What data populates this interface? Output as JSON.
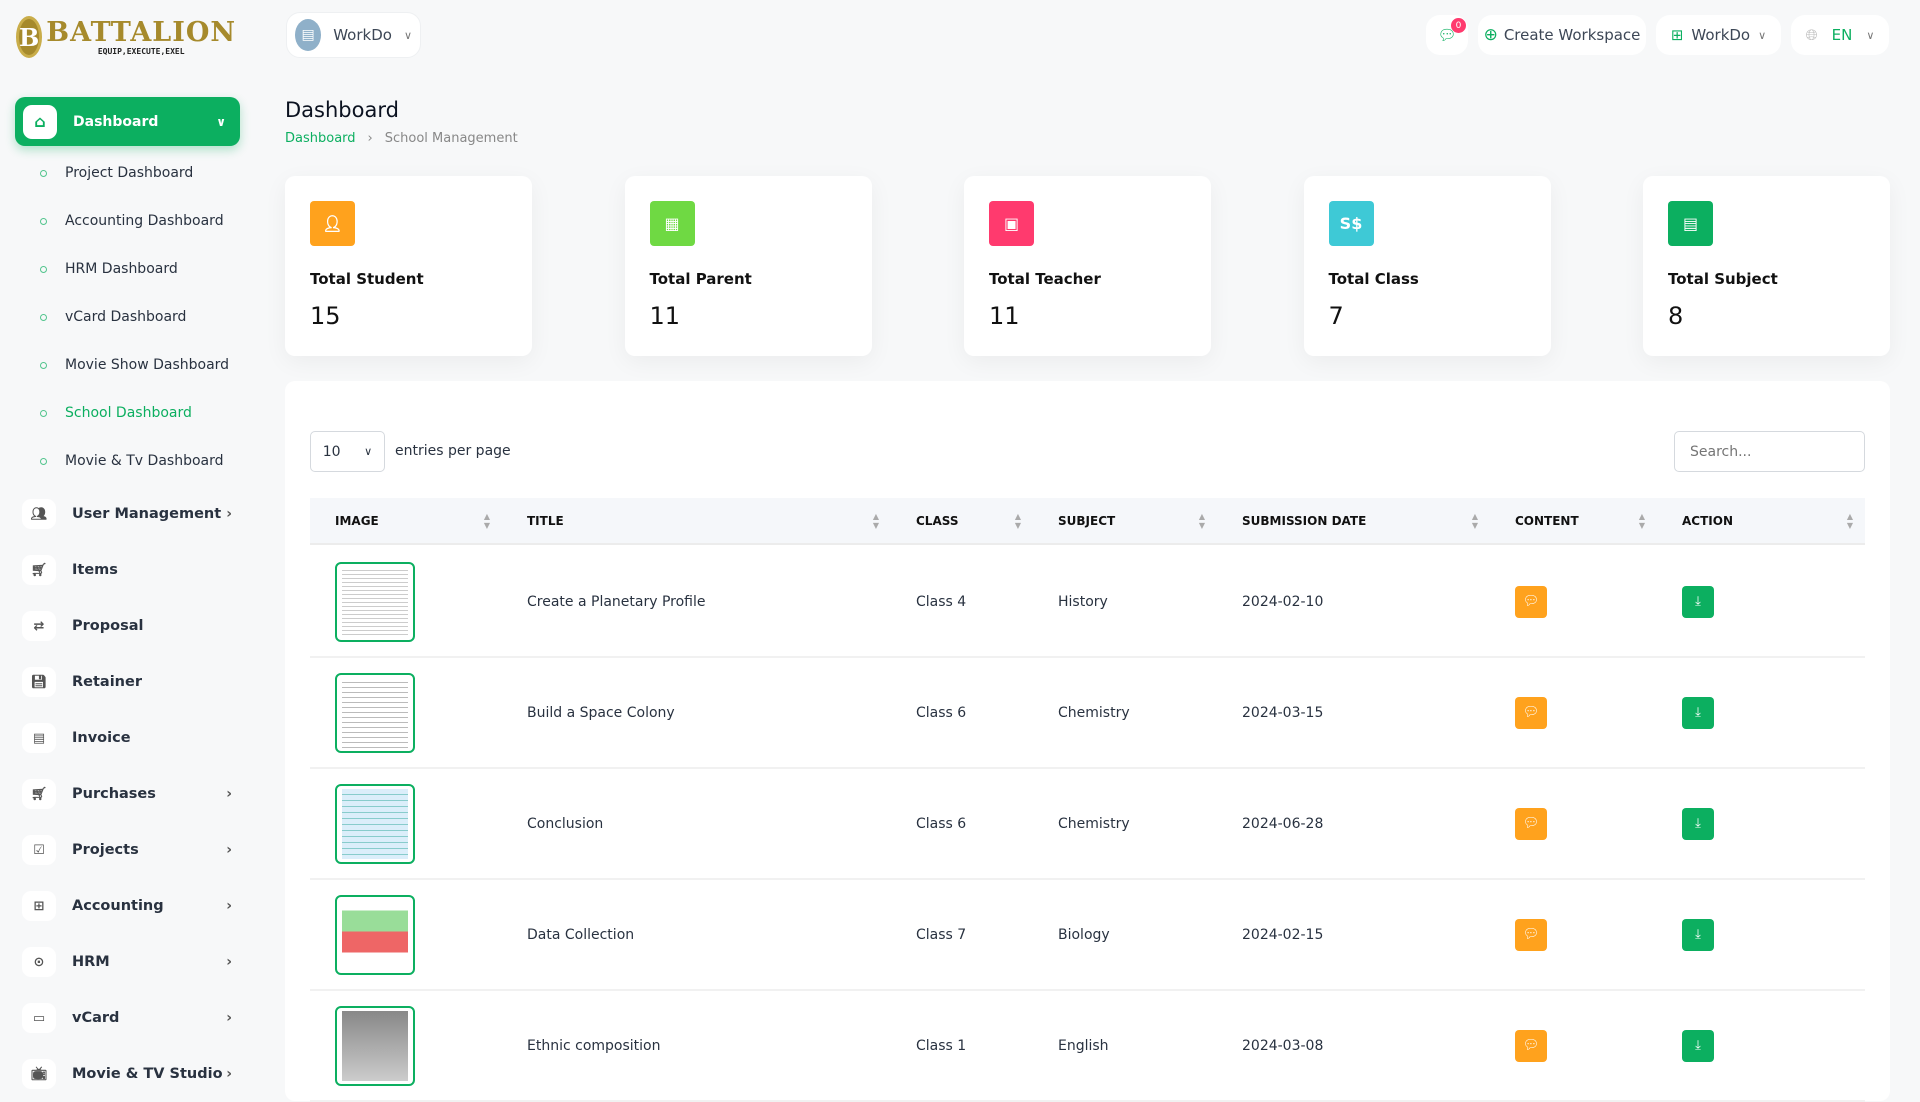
{
  "brand": {
    "name": "BATTALION",
    "tagline": "EQUIP,EXECUTE,EXEL"
  },
  "header": {
    "workspace": "WorkDo",
    "notif_count": "0",
    "create_workspace": "Create Workspace",
    "workspace_menu": "WorkDo",
    "language": "EN"
  },
  "sidebar": {
    "active": "Dashboard",
    "subitems": [
      "Project Dashboard",
      "Accounting Dashboard",
      "HRM Dashboard",
      "vCard Dashboard",
      "Movie Show Dashboard",
      "School Dashboard",
      "Movie & Tv Dashboard"
    ],
    "items": [
      {
        "label": "User Management",
        "icon": "users-icon",
        "arrow": true
      },
      {
        "label": "Items",
        "icon": "cart-icon",
        "arrow": false
      },
      {
        "label": "Proposal",
        "icon": "exchange-icon",
        "arrow": false
      },
      {
        "label": "Retainer",
        "icon": "save-icon",
        "arrow": false
      },
      {
        "label": "Invoice",
        "icon": "file-icon",
        "arrow": false
      },
      {
        "label": "Purchases",
        "icon": "cart-icon",
        "arrow": true
      },
      {
        "label": "Projects",
        "icon": "check-square-icon",
        "arrow": true
      },
      {
        "label": "Accounting",
        "icon": "grid-plus-icon",
        "arrow": true
      },
      {
        "label": "HRM",
        "icon": "user-focus-icon",
        "arrow": true
      },
      {
        "label": "vCard",
        "icon": "card-icon",
        "arrow": true
      },
      {
        "label": "Movie & TV Studio",
        "icon": "tv-icon",
        "arrow": true
      }
    ]
  },
  "page": {
    "title": "Dashboard",
    "breadcrumb": [
      "Dashboard",
      "School Management"
    ]
  },
  "stats": [
    {
      "label": "Total Student",
      "value": "15",
      "color": "#ffa21d",
      "icon": "user-icon"
    },
    {
      "label": "Total Parent",
      "value": "11",
      "color": "#6fd943",
      "icon": "building-icon"
    },
    {
      "label": "Total Teacher",
      "value": "11",
      "color": "#ff3a6e",
      "icon": "id-badge-icon"
    },
    {
      "label": "Total Class",
      "value": "7",
      "color": "#3ec9d6",
      "icon": "class-icon"
    },
    {
      "label": "Total Subject",
      "value": "8",
      "color": "#0caf60",
      "icon": "book-icon"
    }
  ],
  "table": {
    "entries": "10",
    "entries_label": "entries per page",
    "search_placeholder": "Search...",
    "columns": [
      "IMAGE",
      "TITLE",
      "CLASS",
      "SUBJECT",
      "SUBMISSION DATE",
      "CONTENT",
      "ACTION"
    ],
    "rows": [
      {
        "title": "Create a Planetary Profile",
        "class": "Class 4",
        "subject": "History",
        "date": "2024-02-10"
      },
      {
        "title": "Build a Space Colony",
        "class": "Class 6",
        "subject": "Chemistry",
        "date": "2024-03-15"
      },
      {
        "title": "Conclusion",
        "class": "Class 6",
        "subject": "Chemistry",
        "date": "2024-06-28"
      },
      {
        "title": "Data Collection",
        "class": "Class 7",
        "subject": "Biology",
        "date": "2024-02-15"
      },
      {
        "title": "Ethnic composition",
        "class": "Class 1",
        "subject": "English",
        "date": "2024-03-08"
      }
    ]
  },
  "colors": {
    "accent": "#0caf60",
    "content_button": "#ffa21d"
  }
}
